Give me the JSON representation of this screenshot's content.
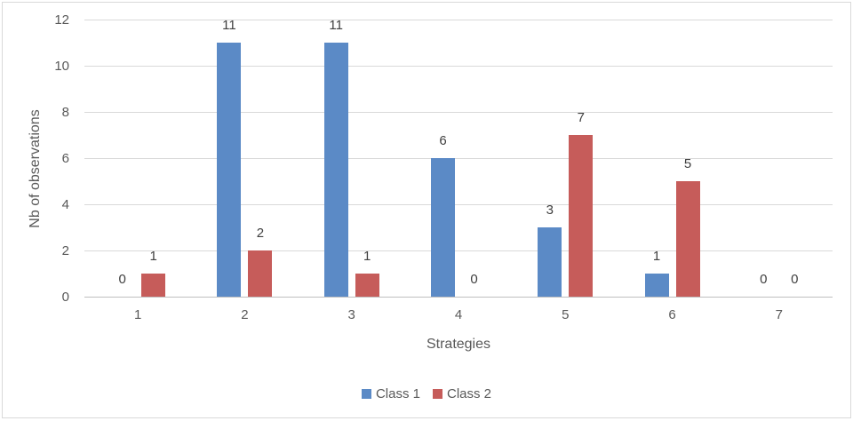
{
  "chart_data": {
    "type": "bar",
    "title": "",
    "xlabel": "Strategies",
    "ylabel": "Nb of observations",
    "categories": [
      "1",
      "2",
      "3",
      "4",
      "5",
      "6",
      "7"
    ],
    "series": [
      {
        "name": "Class 1",
        "color": "#5B8AC6",
        "values": [
          0,
          11,
          11,
          6,
          3,
          1,
          0
        ]
      },
      {
        "name": "Class 2",
        "color": "#C65C5A",
        "values": [
          1,
          2,
          1,
          0,
          7,
          5,
          0
        ]
      }
    ],
    "ylim": [
      0,
      12
    ],
    "yticks": [
      0,
      2,
      4,
      6,
      8,
      10,
      12
    ],
    "grid": true,
    "data_labels": true,
    "legend_position": "bottom"
  },
  "colors": {
    "gridline": "#D9D9D9",
    "axis_line": "#BFBFBF",
    "tick_text": "#595959",
    "data_label_text": "#404040",
    "chart_border": "#D9D9D9",
    "background": "#FFFFFF"
  }
}
